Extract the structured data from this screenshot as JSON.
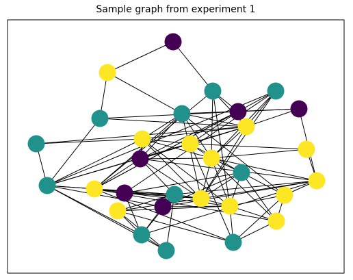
{
  "title": "Sample graph from experiment 1",
  "colors": {
    "purple": "#440154",
    "teal": "#21918c",
    "yellow": "#fde725",
    "edge": "#000000",
    "frame": "#000000"
  },
  "graph": {
    "nodes": [
      {
        "id": "n0",
        "color": "purple"
      },
      {
        "id": "n1",
        "color": "yellow"
      },
      {
        "id": "n2",
        "color": "teal"
      },
      {
        "id": "n3",
        "color": "teal"
      },
      {
        "id": "n4",
        "color": "teal"
      },
      {
        "id": "n5",
        "color": "teal"
      },
      {
        "id": "n6",
        "color": "purple"
      },
      {
        "id": "n7",
        "color": "purple"
      },
      {
        "id": "n8",
        "color": "yellow"
      },
      {
        "id": "n9",
        "color": "teal"
      },
      {
        "id": "n10",
        "color": "yellow"
      },
      {
        "id": "n11",
        "color": "yellow"
      },
      {
        "id": "n12",
        "color": "purple"
      },
      {
        "id": "n13",
        "color": "yellow"
      },
      {
        "id": "n14",
        "color": "yellow"
      },
      {
        "id": "n15",
        "color": "teal"
      },
      {
        "id": "n16",
        "color": "teal"
      },
      {
        "id": "n17",
        "color": "yellow"
      },
      {
        "id": "n18",
        "color": "yellow"
      },
      {
        "id": "n19",
        "color": "purple"
      },
      {
        "id": "n20",
        "color": "teal"
      },
      {
        "id": "n21",
        "color": "purple"
      },
      {
        "id": "n22",
        "color": "yellow"
      },
      {
        "id": "n23",
        "color": "yellow"
      },
      {
        "id": "n24",
        "color": "yellow"
      },
      {
        "id": "n25",
        "color": "yellow"
      },
      {
        "id": "n26",
        "color": "yellow"
      },
      {
        "id": "n27",
        "color": "teal"
      },
      {
        "id": "n28",
        "color": "teal"
      },
      {
        "id": "n29",
        "color": "teal"
      }
    ],
    "edges": [
      [
        "n0",
        "n1"
      ],
      [
        "n0",
        "n3"
      ],
      [
        "n1",
        "n4"
      ],
      [
        "n1",
        "n5"
      ],
      [
        "n3",
        "n6"
      ],
      [
        "n3",
        "n8"
      ],
      [
        "n3",
        "n13"
      ],
      [
        "n3",
        "n18"
      ],
      [
        "n3",
        "n24"
      ],
      [
        "n2",
        "n8"
      ],
      [
        "n2",
        "n10"
      ],
      [
        "n2",
        "n16"
      ],
      [
        "n4",
        "n6"
      ],
      [
        "n4",
        "n7"
      ],
      [
        "n4",
        "n12"
      ],
      [
        "n4",
        "n13"
      ],
      [
        "n4",
        "n18"
      ],
      [
        "n4",
        "n22"
      ],
      [
        "n4",
        "n8"
      ],
      [
        "n4",
        "n10"
      ],
      [
        "n4",
        "n25"
      ],
      [
        "n5",
        "n8"
      ],
      [
        "n5",
        "n6"
      ],
      [
        "n5",
        "n16"
      ],
      [
        "n6",
        "n12"
      ],
      [
        "n6",
        "n7"
      ],
      [
        "n6",
        "n11"
      ],
      [
        "n6",
        "n18"
      ],
      [
        "n7",
        "n8"
      ],
      [
        "n7",
        "n17"
      ],
      [
        "n8",
        "n10"
      ],
      [
        "n8",
        "n13"
      ],
      [
        "n8",
        "n11"
      ],
      [
        "n8",
        "n16"
      ],
      [
        "n8",
        "n9"
      ],
      [
        "n8",
        "n12"
      ],
      [
        "n8",
        "n22"
      ],
      [
        "n9",
        "n13"
      ],
      [
        "n9",
        "n18"
      ],
      [
        "n9",
        "n16"
      ],
      [
        "n9",
        "n19"
      ],
      [
        "n9",
        "n22"
      ],
      [
        "n10",
        "n11"
      ],
      [
        "n10",
        "n12"
      ],
      [
        "n10",
        "n13"
      ],
      [
        "n10",
        "n16"
      ],
      [
        "n10",
        "n22"
      ],
      [
        "n10",
        "n24"
      ],
      [
        "n11",
        "n13"
      ],
      [
        "n11",
        "n12"
      ],
      [
        "n11",
        "n14"
      ],
      [
        "n11",
        "n15"
      ],
      [
        "n11",
        "n16"
      ],
      [
        "n11",
        "n29"
      ],
      [
        "n12",
        "n13"
      ],
      [
        "n12",
        "n18"
      ],
      [
        "n12",
        "n22"
      ],
      [
        "n12",
        "n17"
      ],
      [
        "n12",
        "n20"
      ],
      [
        "n13",
        "n14"
      ],
      [
        "n13",
        "n15"
      ],
      [
        "n13",
        "n17"
      ],
      [
        "n13",
        "n22"
      ],
      [
        "n13",
        "n24"
      ],
      [
        "n13",
        "n26"
      ],
      [
        "n14",
        "n17"
      ],
      [
        "n15",
        "n19"
      ],
      [
        "n15",
        "n21"
      ],
      [
        "n15",
        "n22"
      ],
      [
        "n15",
        "n24"
      ],
      [
        "n15",
        "n25"
      ],
      [
        "n15",
        "n26"
      ],
      [
        "n16",
        "n18"
      ],
      [
        "n16",
        "n27"
      ],
      [
        "n16",
        "n28"
      ],
      [
        "n16",
        "n20"
      ],
      [
        "n17",
        "n20"
      ],
      [
        "n17",
        "n21"
      ],
      [
        "n17",
        "n22"
      ],
      [
        "n17",
        "n27"
      ],
      [
        "n17",
        "n25"
      ],
      [
        "n18",
        "n20"
      ],
      [
        "n18",
        "n22"
      ],
      [
        "n18",
        "n24"
      ],
      [
        "n18",
        "n26"
      ],
      [
        "n18",
        "n29"
      ],
      [
        "n19",
        "n20"
      ],
      [
        "n19",
        "n22"
      ],
      [
        "n19",
        "n27"
      ],
      [
        "n20",
        "n22"
      ],
      [
        "n20",
        "n23"
      ],
      [
        "n20",
        "n27"
      ],
      [
        "n20",
        "n28"
      ],
      [
        "n21",
        "n24"
      ],
      [
        "n21",
        "n27"
      ],
      [
        "n21",
        "n16"
      ],
      [
        "n22",
        "n23"
      ],
      [
        "n22",
        "n24"
      ],
      [
        "n23",
        "n24"
      ],
      [
        "n23",
        "n27"
      ],
      [
        "n23",
        "n28"
      ],
      [
        "n23",
        "n29"
      ],
      [
        "n24",
        "n25"
      ],
      [
        "n24",
        "n26"
      ],
      [
        "n24",
        "n29"
      ],
      [
        "n25",
        "n29"
      ],
      [
        "n25",
        "n26"
      ],
      [
        "n26",
        "n29"
      ],
      [
        "n27",
        "n28"
      ]
    ]
  }
}
